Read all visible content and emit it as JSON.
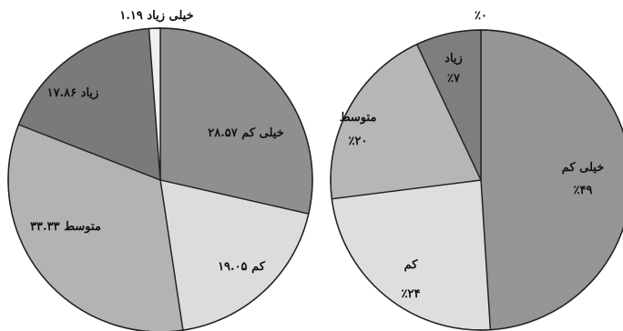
{
  "chart_data": [
    {
      "type": "pie",
      "title": "",
      "slices": [
        {
          "label": "خیلی کم ۲۸.۵۷",
          "value": 28.57,
          "color": "#8f8f8f"
        },
        {
          "label": "کم ۱۹.۰۵",
          "value": 19.05,
          "color": "#dcdcdc"
        },
        {
          "label": "متوسط ۳۳.۳۳",
          "value": 33.33,
          "color": "#b3b3b3"
        },
        {
          "label": "زیاد ۱۷.۸۶",
          "value": 17.86,
          "color": "#7a7a7a"
        },
        {
          "label": "خیلی زیاد ۱.۱۹",
          "value": 1.19,
          "color": "#efefef"
        }
      ]
    },
    {
      "type": "pie",
      "title": "",
      "slices": [
        {
          "label": "خیلی کم",
          "percent_label": "٪۴۹",
          "value": 49,
          "color": "#959595"
        },
        {
          "label": "کم",
          "percent_label": "٪۲۴",
          "value": 24,
          "color": "#dedede"
        },
        {
          "label": "متوسط",
          "percent_label": "٪۲۰",
          "value": 20,
          "color": "#b6b6b6"
        },
        {
          "label": "زیاد",
          "percent_label": "٪۷",
          "value": 7,
          "color": "#7e7e7e"
        },
        {
          "label": "",
          "percent_label": "٪۰",
          "value": 0,
          "color": "#efefef"
        }
      ]
    }
  ]
}
